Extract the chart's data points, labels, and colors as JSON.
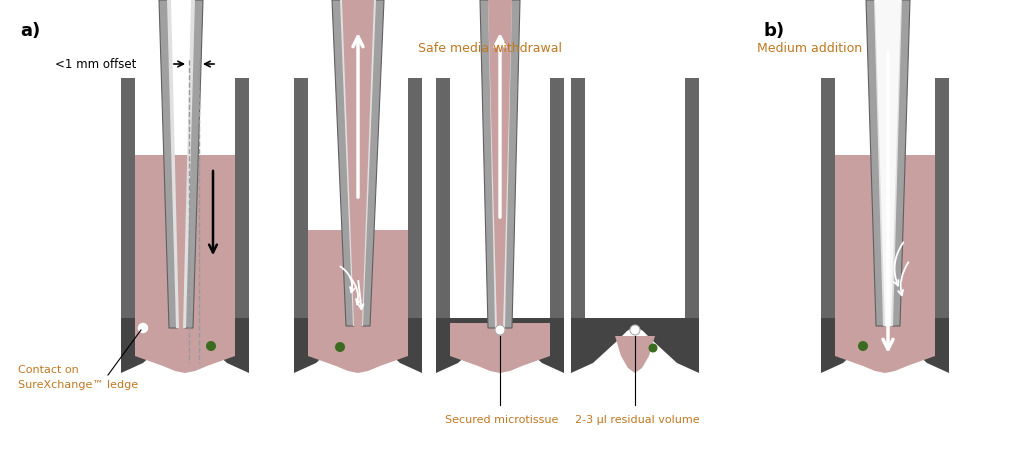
{
  "bg_color": "#ffffff",
  "wall_color": "#666666",
  "ledge_color": "#444444",
  "medium_color": "#c8a0a0",
  "tip_gray": "#a0a0a0",
  "tip_light": "#e0e0e0",
  "tip_dark": "#606060",
  "tip_white": "#f8f8f8",
  "microtissue_color": "#3a6b20",
  "text_blue": "#c07820",
  "text_black": "#000000",
  "label_a": "a)",
  "label_b": "b)",
  "label_offset": "<1 mm offset",
  "label_contact1": "Contact on",
  "label_contact2": "SureXchange™ ledge",
  "label_withdrawal": "Safe media withdrawal",
  "label_secured": "Secured microtissue",
  "label_residual": "2-3 µl residual volume",
  "label_addition": "Medium addition"
}
